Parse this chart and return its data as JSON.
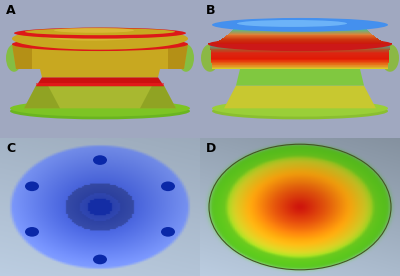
{
  "bg_color": "#a0a8c0",
  "labels": [
    "A",
    "B",
    "C",
    "D"
  ],
  "label_color": "#000000",
  "label_fontsize": 9,
  "label_fontweight": "bold",
  "fig_width": 4.0,
  "fig_height": 2.76,
  "dpi": 100
}
